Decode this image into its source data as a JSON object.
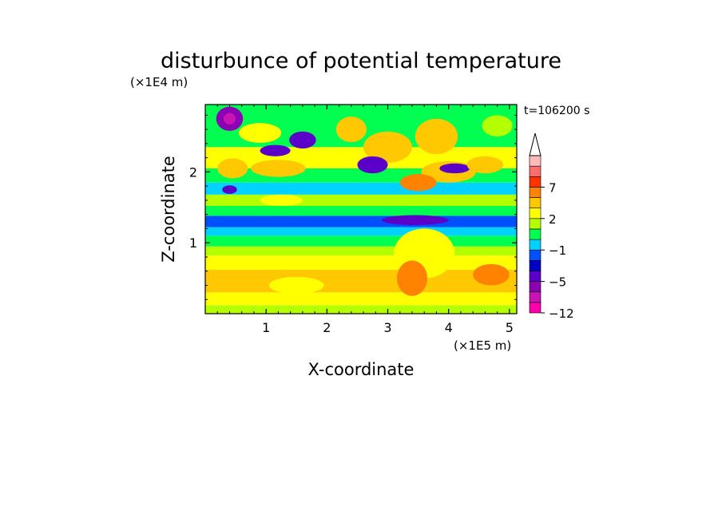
{
  "chart_data": {
    "type": "heatmap",
    "title": "disturbunce of potential temperature",
    "time_label": "t=106200 s",
    "xlabel": "X-coordinate",
    "ylabel": "Z-coordinate",
    "x_scale_label": "(×1E5 m)",
    "y_scale_label": "(×1E4 m)",
    "xlim": [
      0,
      5.12
    ],
    "ylim": [
      0,
      2.95
    ],
    "x_ticks": [
      1,
      2,
      3,
      4,
      5
    ],
    "y_ticks": [
      1,
      2
    ],
    "x_tick_labels": [
      "1",
      "2",
      "3",
      "4",
      "5"
    ],
    "y_tick_labels": [
      "1",
      "2"
    ],
    "colorbar": {
      "levels_bottom_to_top": [
        -12,
        -9,
        -7,
        -5,
        -3,
        -2,
        -1,
        0,
        1,
        2,
        3,
        5,
        7,
        9,
        11
      ],
      "labels": [
        {
          "value": -12,
          "text": "−12"
        },
        {
          "value": -5,
          "text": "−5"
        },
        {
          "value": -1,
          "text": "−1"
        },
        {
          "value": 2,
          "text": "2"
        },
        {
          "value": 7,
          "text": "7"
        }
      ],
      "colors_bottom_to_top": [
        "#ff00aa",
        "#c814b4",
        "#8c00b4",
        "#5a00c8",
        "#0000c8",
        "#0050ff",
        "#00d2ff",
        "#00ff50",
        "#b4ff00",
        "#ffff00",
        "#ffc800",
        "#ff8200",
        "#ff3200",
        "#ff6e6e",
        "#ffbaba"
      ],
      "extend": "max"
    },
    "field": {
      "bands": [
        {
          "z_range": [
            0.0,
            0.12
          ],
          "value": 1.6
        },
        {
          "z_range": [
            0.12,
            0.3
          ],
          "value": 2.4
        },
        {
          "z_range": [
            0.3,
            0.62
          ],
          "value": 3.5
        },
        {
          "z_range": [
            0.62,
            0.82
          ],
          "value": 2.4
        },
        {
          "z_range": [
            0.82,
            0.95
          ],
          "value": 1.5
        },
        {
          "z_range": [
            0.95,
            1.1
          ],
          "value": 0.5
        },
        {
          "z_range": [
            1.1,
            1.22
          ],
          "value": -0.4
        },
        {
          "z_range": [
            1.22,
            1.38
          ],
          "value": -1.5
        },
        {
          "z_range": [
            1.38,
            1.52
          ],
          "value": 0.3
        },
        {
          "z_range": [
            1.52,
            1.68
          ],
          "value": 1.6
        },
        {
          "z_range": [
            1.68,
            1.85
          ],
          "value": -0.2
        },
        {
          "z_range": [
            1.85,
            2.05
          ],
          "value": 0.6
        },
        {
          "z_range": [
            2.05,
            2.35
          ],
          "value": 2.2
        },
        {
          "z_range": [
            2.35,
            2.95
          ],
          "value": 0.4
        }
      ],
      "features": [
        {
          "x": 0.4,
          "z": 2.75,
          "rx": 0.22,
          "rz": 0.17,
          "value": -5.5
        },
        {
          "x": 0.4,
          "z": 2.75,
          "rx": 0.1,
          "rz": 0.08,
          "value": -8
        },
        {
          "x": 1.6,
          "z": 2.45,
          "rx": 0.22,
          "rz": 0.12,
          "value": -3.5
        },
        {
          "x": 1.15,
          "z": 2.3,
          "rx": 0.25,
          "rz": 0.08,
          "value": -3.5
        },
        {
          "x": 0.9,
          "z": 2.55,
          "rx": 0.35,
          "rz": 0.14,
          "value": 2.5
        },
        {
          "x": 1.2,
          "z": 2.05,
          "rx": 0.45,
          "rz": 0.12,
          "value": 4
        },
        {
          "x": 0.45,
          "z": 2.05,
          "rx": 0.25,
          "rz": 0.14,
          "value": 3.5
        },
        {
          "x": 1.25,
          "z": 1.6,
          "rx": 0.35,
          "rz": 0.08,
          "value": 2.2
        },
        {
          "x": 0.4,
          "z": 1.75,
          "rx": 0.12,
          "rz": 0.06,
          "value": -3.5
        },
        {
          "x": 3.45,
          "z": 1.32,
          "rx": 0.55,
          "rz": 0.07,
          "value": -3.5
        },
        {
          "x": 3.0,
          "z": 2.35,
          "rx": 0.4,
          "rz": 0.22,
          "value": 3.5
        },
        {
          "x": 2.75,
          "z": 2.1,
          "rx": 0.25,
          "rz": 0.12,
          "value": -3.5
        },
        {
          "x": 3.8,
          "z": 2.5,
          "rx": 0.35,
          "rz": 0.25,
          "value": 4.5
        },
        {
          "x": 4.0,
          "z": 2.0,
          "rx": 0.45,
          "rz": 0.15,
          "value": 3
        },
        {
          "x": 4.1,
          "z": 2.05,
          "rx": 0.25,
          "rz": 0.07,
          "value": -3.5
        },
        {
          "x": 3.5,
          "z": 1.85,
          "rx": 0.3,
          "rz": 0.12,
          "value": 5
        },
        {
          "x": 2.4,
          "z": 2.6,
          "rx": 0.25,
          "rz": 0.18,
          "value": 3.5
        },
        {
          "x": 4.6,
          "z": 2.1,
          "rx": 0.3,
          "rz": 0.12,
          "value": 3
        },
        {
          "x": 4.8,
          "z": 2.65,
          "rx": 0.25,
          "rz": 0.15,
          "value": 1.5
        },
        {
          "x": 3.6,
          "z": 0.85,
          "rx": 0.5,
          "rz": 0.35,
          "value": 2.2
        },
        {
          "x": 3.4,
          "z": 0.5,
          "rx": 0.25,
          "rz": 0.25,
          "value": 5
        },
        {
          "x": 1.5,
          "z": 0.4,
          "rx": 0.45,
          "rz": 0.12,
          "value": 2.5
        },
        {
          "x": 4.7,
          "z": 0.55,
          "rx": 0.3,
          "rz": 0.15,
          "value": 5
        }
      ]
    }
  }
}
